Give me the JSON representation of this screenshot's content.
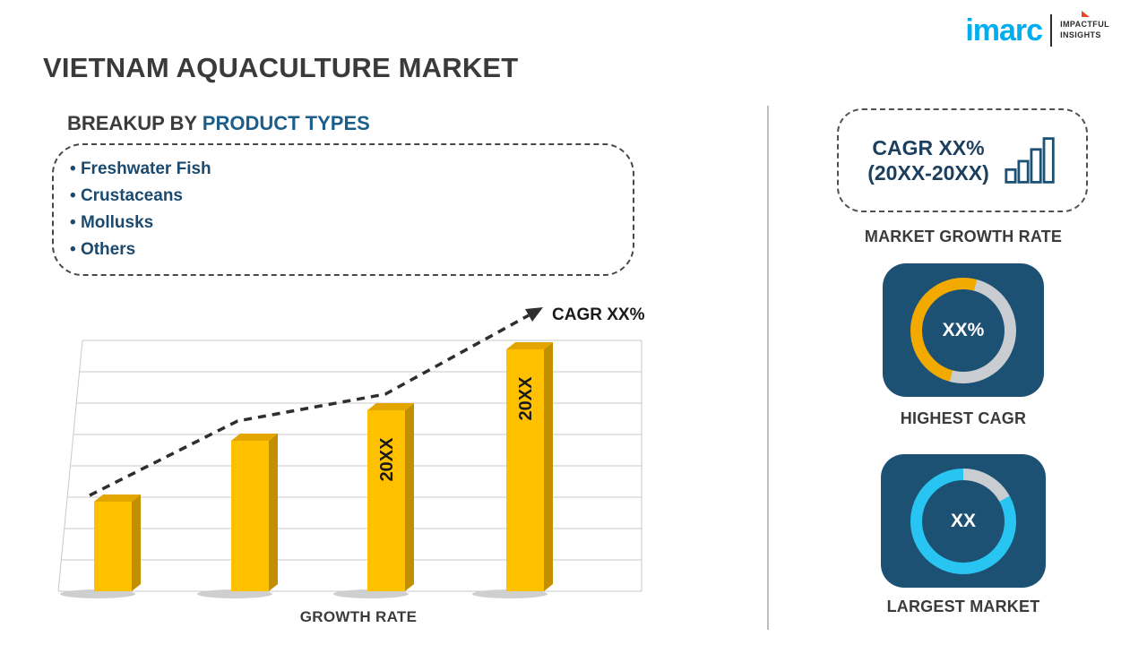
{
  "logo": {
    "brand": "imarc",
    "tagline_line1": "IMPACTFUL",
    "tagline_line2": "INSIGHTS"
  },
  "title": "VIETNAM AQUACULTURE MARKET",
  "breakup": {
    "heading_prefix": "BREAKUP BY ",
    "heading_highlight": "PRODUCT TYPES",
    "items": [
      "Freshwater Fish",
      "Crustaceans",
      "Mollusks",
      "Others"
    ]
  },
  "chart_data": {
    "type": "bar",
    "categories": [
      "",
      "",
      "20XX",
      "20XX"
    ],
    "values": [
      100,
      168,
      202,
      270
    ],
    "bar_color": "#FFC000",
    "bar_side_color": "#C18F00",
    "bar_top_color": "#E3A600",
    "title": "",
    "xlabel": "GROWTH RATE",
    "ylabel": "",
    "ylim": [
      0,
      280
    ],
    "grid": true,
    "legend": false,
    "trend_label": "CAGR XX%",
    "trend": "dashed rising arrow"
  },
  "sidebar": {
    "growth_box": {
      "line1": "CAGR XX%",
      "line2": "(20XX-20XX)",
      "icon": "bar-chart-icon"
    },
    "market_growth_caption": "MARKET GROWTH RATE",
    "highest_cagr": {
      "value": "XX%",
      "caption": "HIGHEST CAGR",
      "fill_percent": 50,
      "fill_color": "#F2A900",
      "start_deg": 15
    },
    "largest_market": {
      "value": "XX",
      "caption": "LARGEST MARKET",
      "fill_percent": 83,
      "fill_color": "#29C5F2",
      "start_deg": 0
    }
  },
  "colors": {
    "bar_gold": "#FFC000",
    "panel_navy": "#1D5174",
    "ring_base": "#C9CDD1",
    "accent_blue": "#1B5E8C",
    "text_dark": "#3B3B3B",
    "navy_text": "#1B4A6E",
    "logo_cyan": "#00AEEF",
    "logo_red": "#E8432D"
  }
}
